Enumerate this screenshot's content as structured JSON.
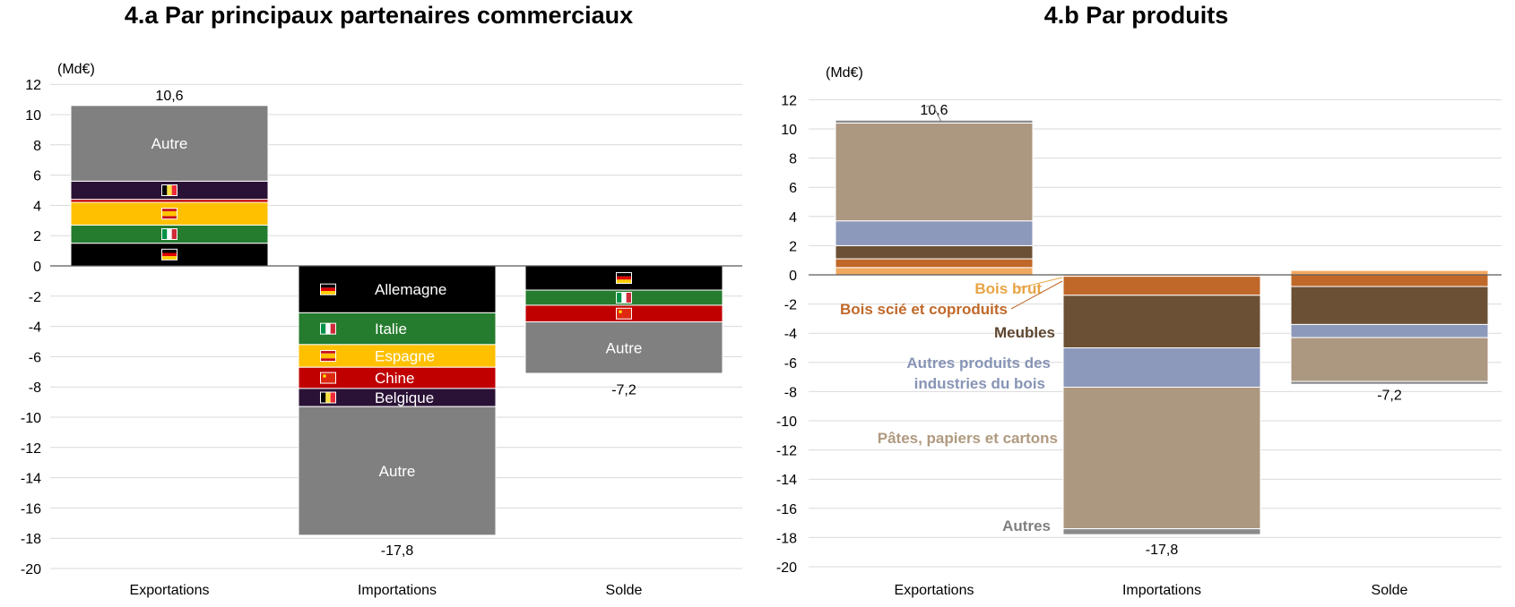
{
  "chart_data": [
    {
      "type": "bar",
      "stacked": true,
      "title": "4.a Par principaux partenaires commerciaux",
      "unit_label": "(Md€)",
      "categories": [
        "Exportations",
        "Importations",
        "Solde"
      ],
      "ylim": [
        -20,
        12
      ],
      "yticks": [
        12,
        10,
        8,
        6,
        4,
        2,
        0,
        -2,
        -4,
        -6,
        -8,
        -10,
        -12,
        -14,
        -16,
        -18,
        -20
      ],
      "grid": true,
      "totals": [
        {
          "category": "Exportations",
          "value": 10.6,
          "label": "10,6"
        },
        {
          "category": "Importations",
          "value": -17.8,
          "label": "-17,8"
        },
        {
          "category": "Solde",
          "value": -7.2,
          "label": "-7,2"
        }
      ],
      "series": [
        {
          "name": "Allemagne",
          "color": "#000000",
          "flag": "de",
          "values": [
            1.5,
            -3.1,
            -1.6
          ]
        },
        {
          "name": "Italie",
          "color": "#257b2e",
          "flag": "it",
          "values": [
            1.2,
            -2.1,
            -1.0
          ]
        },
        {
          "name": "Espagne",
          "color": "#ffc000",
          "flag": "es",
          "values": [
            1.5,
            -1.5,
            0.0
          ]
        },
        {
          "name": "Chine",
          "color": "#c00000",
          "flag": "cn",
          "values": [
            0.2,
            -1.4,
            -1.1
          ]
        },
        {
          "name": "Belgique",
          "color": "#2a1236",
          "flag": "be",
          "values": [
            1.2,
            -1.2,
            0.0
          ]
        },
        {
          "name": "Autre",
          "color": "#808080",
          "values": [
            5.0,
            -8.5,
            -3.4
          ]
        }
      ]
    },
    {
      "type": "bar",
      "stacked": true,
      "title": "4.b Par produits",
      "unit_label": "(Md€)",
      "categories": [
        "Exportations",
        "Importations",
        "Solde"
      ],
      "ylim": [
        -20,
        12
      ],
      "yticks": [
        12,
        10,
        8,
        6,
        4,
        2,
        0,
        -2,
        -4,
        -6,
        -8,
        -10,
        -12,
        -14,
        -16,
        -18,
        -20
      ],
      "grid": true,
      "totals": [
        {
          "category": "Exportations",
          "value": 10.6,
          "label": "10,6"
        },
        {
          "category": "Importations",
          "value": -17.8,
          "label": "-17,8"
        },
        {
          "category": "Solde",
          "value": -7.2,
          "label": "-7,2"
        }
      ],
      "series": [
        {
          "name": "Bois brut",
          "color": "#f0a860",
          "values": [
            0.5,
            -0.1,
            0.3
          ]
        },
        {
          "name": "Bois scié et coproduits",
          "color": "#c0682a",
          "values": [
            0.6,
            -1.3,
            -0.8
          ]
        },
        {
          "name": "Meubles",
          "color": "#6b5035",
          "values": [
            0.9,
            -3.6,
            -2.6
          ]
        },
        {
          "name": "Autres produits des industries du bois",
          "color": "#8d99bb",
          "values": [
            1.7,
            -2.7,
            -0.9
          ]
        },
        {
          "name": "Pâtes, papiers et cartons",
          "color": "#ac9780",
          "values": [
            6.7,
            -9.7,
            -3.0
          ]
        },
        {
          "name": "Autres",
          "color": "#8a8a8a",
          "values": [
            0.2,
            -0.4,
            -0.2
          ]
        }
      ],
      "annotations": [
        {
          "text": "Bois brut",
          "series": "Bois brut",
          "color": "#e8a444"
        },
        {
          "text": "Bois scié et coproduits",
          "series": "Bois scié et coproduits",
          "color": "#c0682a"
        },
        {
          "text": "Meubles",
          "series": "Meubles",
          "color": "#5e4630"
        },
        {
          "text": "Autres produits des",
          "series": "Autres produits des industries du bois",
          "color": "#8794b5"
        },
        {
          "text": "industries du bois",
          "series": "Autres produits des industries du bois",
          "color": "#8794b5"
        },
        {
          "text": "Pâtes, papiers et cartons",
          "series": "Pâtes, papiers et cartons",
          "color": "#b09a80"
        },
        {
          "text": "Autres",
          "series": "Autres",
          "color": "#7f7f7f"
        }
      ]
    }
  ]
}
